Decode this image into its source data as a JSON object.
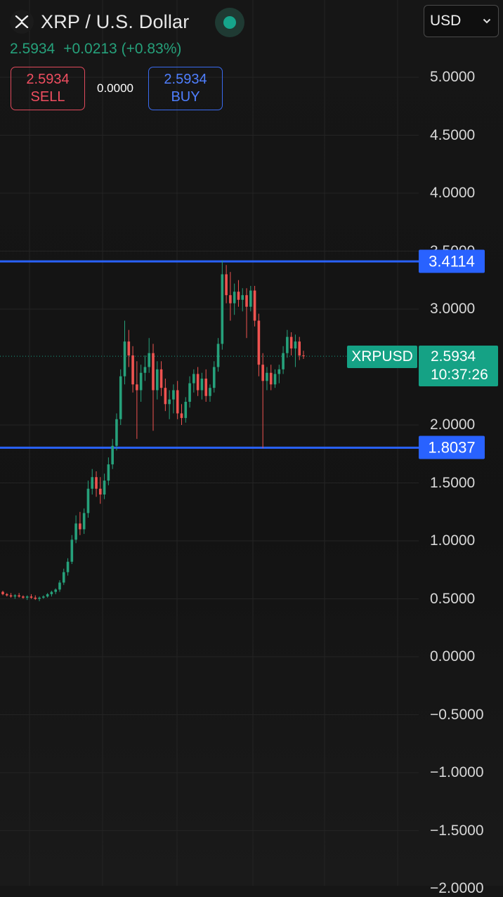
{
  "header": {
    "pair_name": "XRP / U.S. Dollar",
    "logo_icon": "xrp-logo-icon",
    "status_icon": "market-status-dot-icon",
    "currency": "USD",
    "currency_icon": "chevron-down-icon"
  },
  "quote": {
    "last": "2.5934",
    "change": "+0.0213",
    "change_pct": "(+0.83%)"
  },
  "trade": {
    "sell_price": "2.5934",
    "sell_label": "SELL",
    "spread": "0.0000",
    "buy_price": "2.5934",
    "buy_label": "BUY"
  },
  "price_axis": {
    "ticks": [
      "5.0000",
      "4.5000",
      "4.0000",
      "3.5000",
      "3.0000",
      "2.0000",
      "1.5000",
      "1.0000",
      "0.5000",
      "0.0000",
      "−0.5000",
      "−1.0000",
      "−1.5000",
      "−2.0000"
    ],
    "tick_values": [
      5.0,
      4.5,
      4.0,
      3.5,
      3.0,
      2.0,
      1.5,
      1.0,
      0.5,
      0.0,
      -0.5,
      -1.0,
      -1.5,
      -2.0
    ]
  },
  "levels": {
    "upper": "3.4114",
    "lower": "1.8037",
    "upper_value": 3.4114,
    "lower_value": 1.8037
  },
  "current": {
    "symbol": "XRPUSD",
    "price": "2.5934",
    "price_value": 2.5934,
    "countdown": "10:37:26"
  },
  "colors": {
    "up": "#26a17b",
    "down": "#ef5350",
    "level_line": "#2962ff",
    "current_tag": "#15a285"
  },
  "chart_data": {
    "type": "candlestick",
    "ylim": [
      -2.0,
      5.1
    ],
    "grid": true,
    "candles_ohlc": [
      [
        0.56,
        0.57,
        0.53,
        0.54
      ],
      [
        0.54,
        0.55,
        0.52,
        0.53
      ],
      [
        0.53,
        0.55,
        0.51,
        0.52
      ],
      [
        0.52,
        0.54,
        0.5,
        0.53
      ],
      [
        0.53,
        0.55,
        0.51,
        0.52
      ],
      [
        0.52,
        0.53,
        0.5,
        0.51
      ],
      [
        0.51,
        0.53,
        0.49,
        0.52
      ],
      [
        0.52,
        0.54,
        0.5,
        0.51
      ],
      [
        0.51,
        0.53,
        0.49,
        0.5
      ],
      [
        0.5,
        0.52,
        0.48,
        0.51
      ],
      [
        0.51,
        0.53,
        0.5,
        0.52
      ],
      [
        0.52,
        0.55,
        0.51,
        0.54
      ],
      [
        0.54,
        0.57,
        0.52,
        0.56
      ],
      [
        0.56,
        0.59,
        0.54,
        0.58
      ],
      [
        0.58,
        0.66,
        0.56,
        0.64
      ],
      [
        0.64,
        0.76,
        0.62,
        0.73
      ],
      [
        0.73,
        0.85,
        0.7,
        0.82
      ],
      [
        0.82,
        1.05,
        0.8,
        1.01
      ],
      [
        1.01,
        1.22,
        0.98,
        1.15
      ],
      [
        1.15,
        1.25,
        1.05,
        1.1
      ],
      [
        1.1,
        1.28,
        1.06,
        1.24
      ],
      [
        1.24,
        1.52,
        1.2,
        1.45
      ],
      [
        1.45,
        1.62,
        1.4,
        1.55
      ],
      [
        1.55,
        1.6,
        1.38,
        1.45
      ],
      [
        1.45,
        1.55,
        1.32,
        1.4
      ],
      [
        1.4,
        1.58,
        1.36,
        1.52
      ],
      [
        1.52,
        1.72,
        1.48,
        1.66
      ],
      [
        1.66,
        1.88,
        1.62,
        1.82
      ],
      [
        1.82,
        2.1,
        1.78,
        2.05
      ],
      [
        2.05,
        2.48,
        2.0,
        2.42
      ],
      [
        2.42,
        2.9,
        2.35,
        2.72
      ],
      [
        2.72,
        2.82,
        2.5,
        2.6
      ],
      [
        2.6,
        2.68,
        2.28,
        2.35
      ],
      [
        2.35,
        2.55,
        1.88,
        2.3
      ],
      [
        2.3,
        2.52,
        2.2,
        2.45
      ],
      [
        2.45,
        2.6,
        2.38,
        2.5
      ],
      [
        2.5,
        2.75,
        2.45,
        2.62
      ],
      [
        2.62,
        2.7,
        1.95,
        2.3
      ],
      [
        2.3,
        2.55,
        2.22,
        2.48
      ],
      [
        2.48,
        2.55,
        2.25,
        2.32
      ],
      [
        2.32,
        2.4,
        2.12,
        2.18
      ],
      [
        2.18,
        2.3,
        2.05,
        2.22
      ],
      [
        2.22,
        2.35,
        2.1,
        2.3
      ],
      [
        2.3,
        2.38,
        2.05,
        2.1
      ],
      [
        2.1,
        2.18,
        2.0,
        2.06
      ],
      [
        2.06,
        2.24,
        2.02,
        2.2
      ],
      [
        2.2,
        2.42,
        2.15,
        2.36
      ],
      [
        2.36,
        2.48,
        2.28,
        2.44
      ],
      [
        2.44,
        2.5,
        2.25,
        2.3
      ],
      [
        2.3,
        2.45,
        2.22,
        2.4
      ],
      [
        2.4,
        2.48,
        2.2,
        2.25
      ],
      [
        2.25,
        2.35,
        2.2,
        2.32
      ],
      [
        2.32,
        2.55,
        2.28,
        2.5
      ],
      [
        2.5,
        2.75,
        2.46,
        2.7
      ],
      [
        2.7,
        3.42,
        2.65,
        3.3
      ],
      [
        3.3,
        3.38,
        3.05,
        3.12
      ],
      [
        3.12,
        3.32,
        2.9,
        3.05
      ],
      [
        3.05,
        3.22,
        2.95,
        3.15
      ],
      [
        3.15,
        3.25,
        3.02,
        3.08
      ],
      [
        3.08,
        3.18,
        2.98,
        3.12
      ],
      [
        3.12,
        3.18,
        2.75,
        3.02
      ],
      [
        3.02,
        3.2,
        2.98,
        3.16
      ],
      [
        3.16,
        3.2,
        2.85,
        2.9
      ],
      [
        2.9,
        2.96,
        2.42,
        2.52
      ],
      [
        2.52,
        2.62,
        1.8,
        2.38
      ],
      [
        2.38,
        2.5,
        2.3,
        2.45
      ],
      [
        2.45,
        2.52,
        2.3,
        2.35
      ],
      [
        2.35,
        2.48,
        2.32,
        2.44
      ],
      [
        2.44,
        2.52,
        2.36,
        2.48
      ],
      [
        2.48,
        2.68,
        2.44,
        2.62
      ],
      [
        2.62,
        2.82,
        2.58,
        2.76
      ],
      [
        2.76,
        2.8,
        2.6,
        2.66
      ],
      [
        2.66,
        2.78,
        2.5,
        2.72
      ],
      [
        2.72,
        2.76,
        2.56,
        2.6
      ],
      [
        2.6,
        2.64,
        2.57,
        2.5934
      ]
    ]
  }
}
